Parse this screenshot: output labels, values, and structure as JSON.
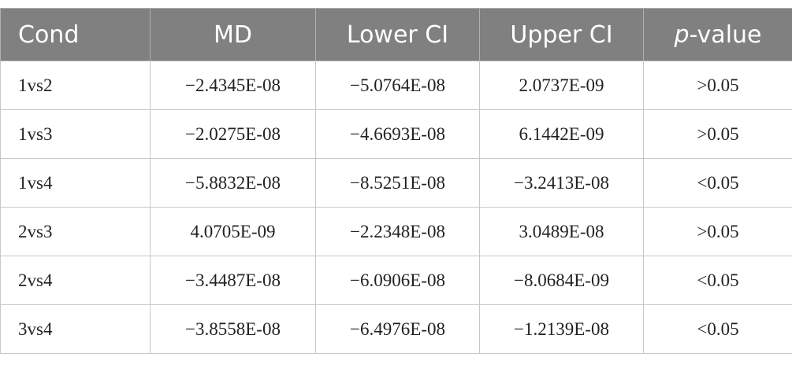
{
  "table": {
    "header": [
      "Cond",
      "MD",
      "Lower CI",
      "Upper CI",
      "p-value"
    ],
    "rows": [
      [
        "1vs2",
        "−2.4345E-08",
        "−5.0764E-08",
        "2.0737E-09",
        ">0.05"
      ],
      [
        "1vs3",
        "−2.0275E-08",
        "−4.6693E-08",
        "6.1442E-09",
        ">0.05"
      ],
      [
        "1vs4",
        "−5.8832E-08",
        "−8.5251E-08",
        "−3.2413E-08",
        "<0.05"
      ],
      [
        "2vs3",
        "4.0705E-09",
        "−2.2348E-08",
        "3.0489E-08",
        ">0.05"
      ],
      [
        "2vs4",
        "−3.4487E-08",
        "−6.0906E-08",
        "−8.0684E-09",
        "<0.05"
      ],
      [
        "3vs4",
        "−3.8558E-08",
        "−6.4976E-08",
        "−1.2139E-08",
        "<0.05"
      ]
    ]
  }
}
